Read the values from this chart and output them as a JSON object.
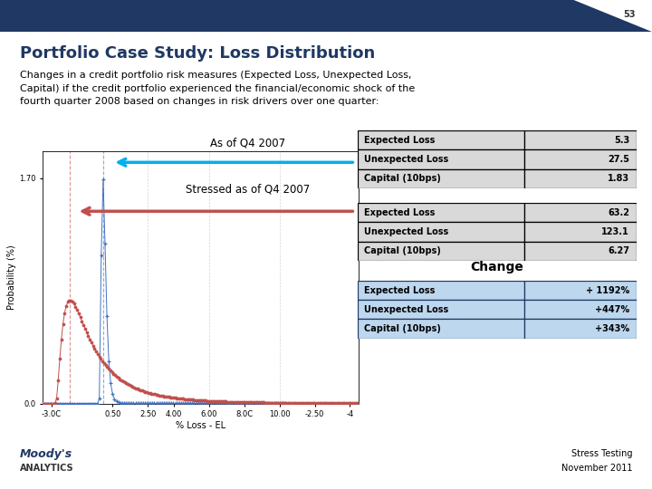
{
  "title": "Portfolio Case Study: Loss Distribution",
  "slide_number": "53",
  "body_text": "Changes in a credit portfolio risk measures (Expected Loss, Unexpected Loss,\nCapital) if the credit portfolio experienced the financial/economic shock of the\nfourth quarter 2008 based on changes in risk drivers over one quarter:",
  "header_color": "#1F3864",
  "header_right_color": "#FFFFFF",
  "title_color": "#1F3864",
  "background_color": "#FFFFFF",
  "footer_line_color": "#1F3864",
  "table1_label": "As of Q4 2007",
  "table1_rows": [
    [
      "Expected Loss",
      "5.3"
    ],
    [
      "Unexpected Loss",
      "27.5"
    ],
    [
      "Capital (10bps)",
      "1.83"
    ]
  ],
  "table2_label": "Stressed as of Q4 2007",
  "table2_rows": [
    [
      "Expected Loss",
      "63.2"
    ],
    [
      "Unexpected Loss",
      "123.1"
    ],
    [
      "Capital (10bps)",
      "6.27"
    ]
  ],
  "change_label": "Change",
  "change_rows": [
    [
      "Expected Loss",
      "+ 1192%"
    ],
    [
      "Unexpected Loss",
      "+447%"
    ],
    [
      "Capital (10bps)",
      "+343%"
    ]
  ],
  "plot_ylabel": "Probability (%)",
  "plot_xlabel": "% Loss - EL",
  "blue_curve_color": "#4472C4",
  "red_curve_color": "#C0504D",
  "arrow1_color": "#00B0F0",
  "arrow2_color": "#C0504D",
  "table_cell_bg": "#D9D9D9",
  "table_border_color": "#000000",
  "change_table_bg": "#BDD7EE",
  "change_border_color": "#1F3864",
  "moody_color": "#1F3864",
  "footer_text_color": "#000000"
}
